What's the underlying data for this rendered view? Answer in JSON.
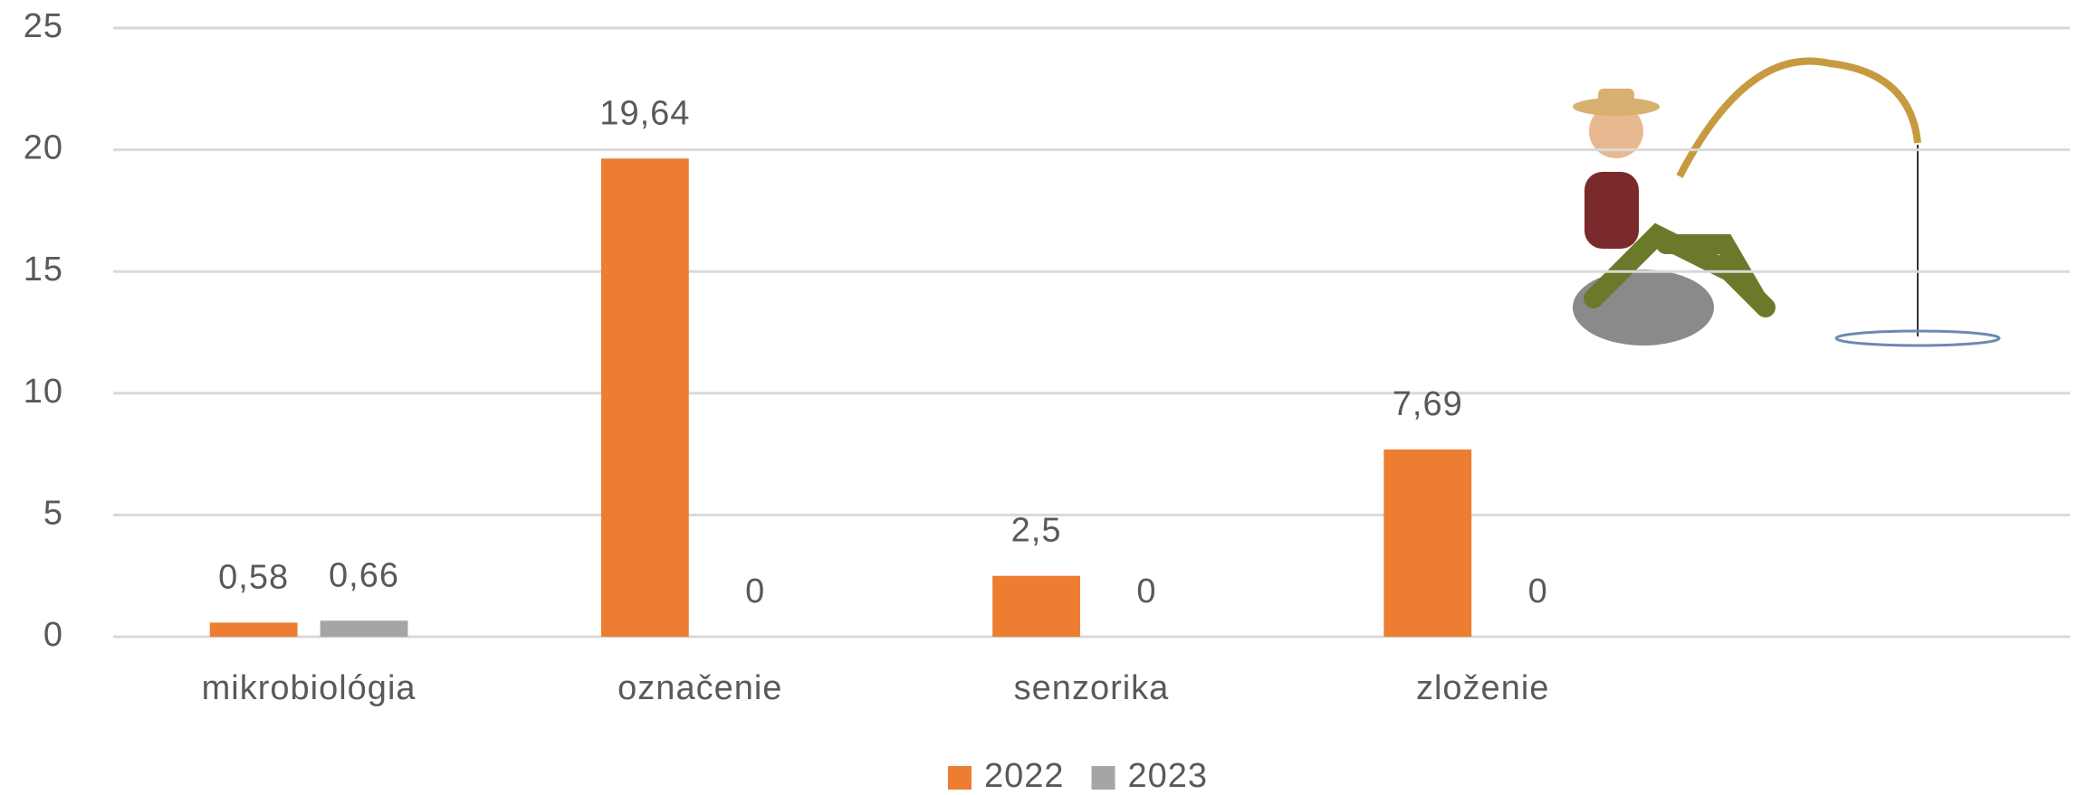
{
  "chart_data": {
    "type": "bar",
    "categories": [
      "mikrobiológia",
      "označenie",
      "senzorika",
      "zloženie",
      null
    ],
    "series": [
      {
        "name": "2022",
        "color": "#ed7d31",
        "values": [
          0.58,
          19.64,
          2.5,
          7.69,
          null
        ],
        "value_labels": [
          "0,58",
          "19,64",
          "2,5",
          "7,69",
          null
        ]
      },
      {
        "name": "2023",
        "color": "#a5a5a5",
        "values": [
          0.66,
          0,
          0,
          0,
          null
        ],
        "value_labels": [
          "0,66",
          "0",
          "0",
          "0",
          null
        ]
      }
    ],
    "ylim": [
      0,
      25
    ],
    "yticks": [
      0,
      5,
      10,
      15,
      20,
      25
    ],
    "grid": true,
    "legend": "bottom"
  }
}
